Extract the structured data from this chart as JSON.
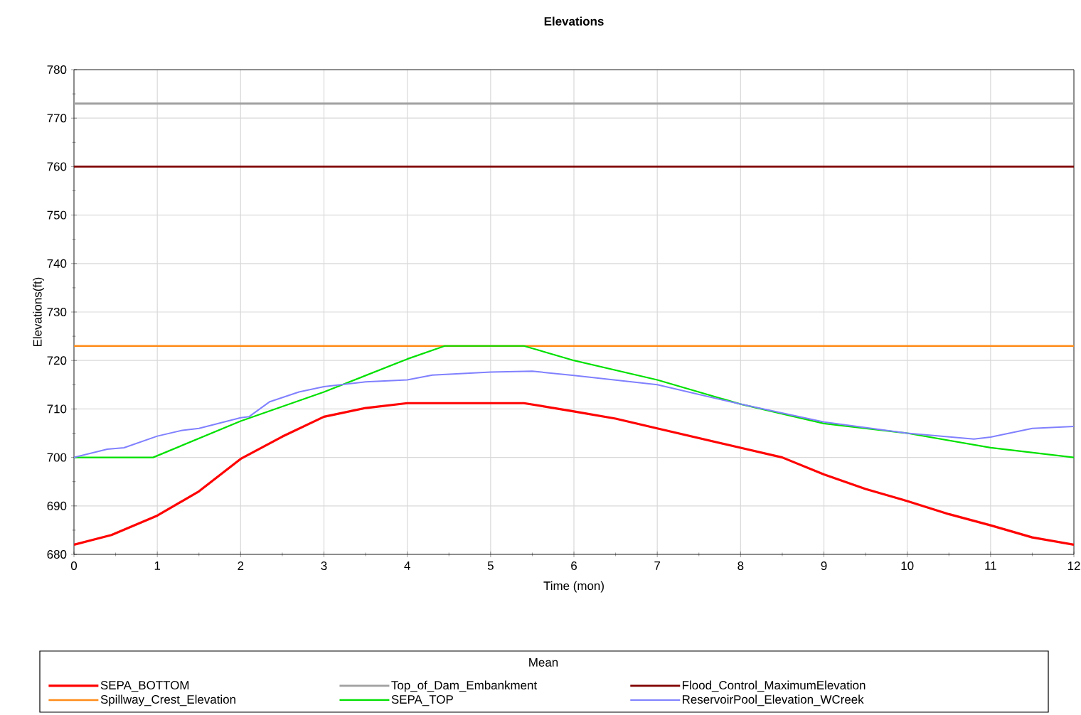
{
  "chart_data": {
    "type": "line",
    "title": "Elevations",
    "xlabel": "Time (mon)",
    "ylabel": "Elevations(ft)",
    "legend_title": "Mean",
    "legend": "bottom",
    "grid": true,
    "marker": "none",
    "line_style": "solid",
    "xlim": [
      0,
      12
    ],
    "xticks": [
      0,
      1,
      2,
      3,
      4,
      5,
      6,
      7,
      8,
      9,
      10,
      11,
      12
    ],
    "ylim": [
      680,
      780
    ],
    "yticks": [
      680,
      690,
      700,
      710,
      720,
      730,
      740,
      750,
      760,
      770,
      780
    ],
    "series": [
      {
        "name": "SEPA_BOTTOM",
        "color": "#ff0000",
        "x": [
          0,
          0.45,
          1,
          1.5,
          2,
          2.5,
          3,
          3.5,
          4,
          5.4,
          6,
          6.5,
          7,
          8,
          8.5,
          9,
          9.5,
          10,
          10.5,
          11,
          11.5,
          12
        ],
        "values": [
          682,
          684,
          688,
          693,
          699.7,
          704.3,
          708.4,
          710.2,
          711.2,
          711.2,
          709.5,
          708,
          706,
          702,
          700,
          696.5,
          693.5,
          691,
          688.3,
          686,
          683.5,
          682
        ]
      },
      {
        "name": "Top_of_Dam_Embankment",
        "color": "#a0a0a0",
        "x": [
          0,
          12
        ],
        "values": [
          773,
          773
        ]
      },
      {
        "name": "Flood_Control_MaximumElevation",
        "color": "#800000",
        "x": [
          0,
          12
        ],
        "values": [
          760,
          760
        ]
      },
      {
        "name": "Spillway_Crest_Elevation",
        "color": "#ff8c1a",
        "x": [
          0,
          12
        ],
        "values": [
          723,
          723
        ]
      },
      {
        "name": "SEPA_TOP",
        "color": "#00e000",
        "x": [
          0,
          0.95,
          2,
          3,
          4,
          4.45,
          5.4,
          6,
          7,
          8,
          9,
          10,
          11,
          12
        ],
        "values": [
          700,
          700,
          707.5,
          713.5,
          720.3,
          723,
          723,
          720,
          716,
          711,
          707,
          705,
          702,
          700
        ]
      },
      {
        "name": "ReservoirPool_Elevation_WCreek",
        "color": "#8080ff",
        "x": [
          0,
          0.4,
          0.6,
          1,
          1.3,
          1.5,
          2,
          2.1,
          2.35,
          2.7,
          3,
          3.5,
          4,
          4.3,
          5,
          5.5,
          6,
          7,
          8,
          9,
          10,
          10.8,
          11,
          11.5,
          12
        ],
        "values": [
          700,
          701.7,
          702,
          704.4,
          705.6,
          706,
          708.2,
          708.4,
          711.5,
          713.5,
          714.6,
          715.6,
          716,
          717,
          717.6,
          717.8,
          716.9,
          715,
          711,
          707.3,
          705,
          703.8,
          704.2,
          706,
          706.4
        ]
      }
    ]
  }
}
